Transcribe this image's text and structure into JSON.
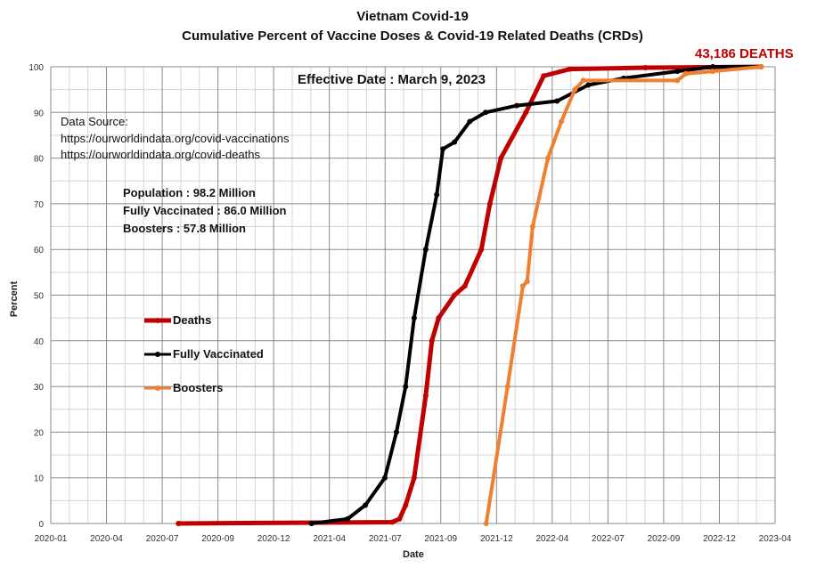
{
  "chart_data": {
    "type": "line",
    "title": "Vietnam Covid-19",
    "subtitle": "Cumulative Percent of Vaccine Doses & Covid-19 Related Deaths (CRDs)",
    "xlabel": "Date",
    "ylabel": "Percent",
    "xlim": [
      "2020-01-01",
      "2023-04-01"
    ],
    "ylim": [
      0,
      100
    ],
    "x_tick_labels": [
      "2020-01",
      "2020-04",
      "2020-07",
      "2020-09",
      "2020-12",
      "2021-04",
      "2021-07",
      "2021-09",
      "2021-12",
      "2022-04",
      "2022-07",
      "2022-09",
      "2022-12",
      "2023-04"
    ],
    "y_ticks": [
      0,
      10,
      20,
      30,
      40,
      50,
      60,
      70,
      80,
      90,
      100
    ],
    "grid": true,
    "legend_placement": "left-middle",
    "annotations": {
      "deaths_label": "43,186 DEATHS",
      "effective_date": "Effective Date : March 9, 2023",
      "source_heading": "Data Source:",
      "source_1": "https://ourworldindata.org/covid-vaccinations",
      "source_2": "https://ourworldindata.org/covid-deaths",
      "population": "Population : 98.2 Million",
      "fully_vaccinated": "Fully Vaccinated :  86.0 Million",
      "boosters": "Boosters : 57.8 Million"
    },
    "series": [
      {
        "name": "Deaths",
        "color": "#c00000",
        "points": [
          [
            "2020-07-28",
            0
          ],
          [
            "2021-07-13",
            0.3
          ],
          [
            "2021-07-25",
            1
          ],
          [
            "2021-08-04",
            4
          ],
          [
            "2021-08-18",
            10
          ],
          [
            "2021-09-06",
            28
          ],
          [
            "2021-09-16",
            40
          ],
          [
            "2021-09-27",
            45
          ],
          [
            "2021-10-23",
            50
          ],
          [
            "2021-11-09",
            52
          ],
          [
            "2021-12-06",
            60
          ],
          [
            "2021-12-20",
            70
          ],
          [
            "2022-01-07",
            80
          ],
          [
            "2022-02-17",
            90
          ],
          [
            "2022-03-18",
            98
          ],
          [
            "2022-04-30",
            99.5
          ],
          [
            "2022-09-01",
            99.8
          ],
          [
            "2023-03-09",
            100
          ]
        ]
      },
      {
        "name": "Fully Vaccinated",
        "color": "#000000",
        "points": [
          [
            "2021-03-03",
            0
          ],
          [
            "2021-05-01",
            1
          ],
          [
            "2021-05-30",
            4
          ],
          [
            "2021-07-01",
            10
          ],
          [
            "2021-07-20",
            20
          ],
          [
            "2021-08-04",
            30
          ],
          [
            "2021-08-18",
            45
          ],
          [
            "2021-09-06",
            60
          ],
          [
            "2021-09-24",
            72
          ],
          [
            "2021-10-04",
            82
          ],
          [
            "2021-10-23",
            83.5
          ],
          [
            "2021-11-17",
            88
          ],
          [
            "2021-12-13",
            90
          ],
          [
            "2022-02-02",
            91.5
          ],
          [
            "2022-04-09",
            92.5
          ],
          [
            "2022-05-30",
            96
          ],
          [
            "2022-07-27",
            97.5
          ],
          [
            "2022-10-23",
            99
          ],
          [
            "2022-12-20",
            100
          ],
          [
            "2023-03-09",
            100
          ]
        ]
      },
      {
        "name": "Boosters",
        "color": "#f07f30",
        "points": [
          [
            "2021-12-14",
            0
          ],
          [
            "2022-01-18",
            30
          ],
          [
            "2022-02-12",
            52
          ],
          [
            "2022-02-19",
            53
          ],
          [
            "2022-02-28",
            65
          ],
          [
            "2022-03-25",
            80
          ],
          [
            "2022-04-16",
            88
          ],
          [
            "2022-05-08",
            95
          ],
          [
            "2022-05-22",
            97
          ],
          [
            "2022-10-23",
            97
          ],
          [
            "2022-11-06",
            98.5
          ],
          [
            "2022-12-20",
            99
          ],
          [
            "2023-03-09",
            100
          ]
        ]
      }
    ]
  }
}
